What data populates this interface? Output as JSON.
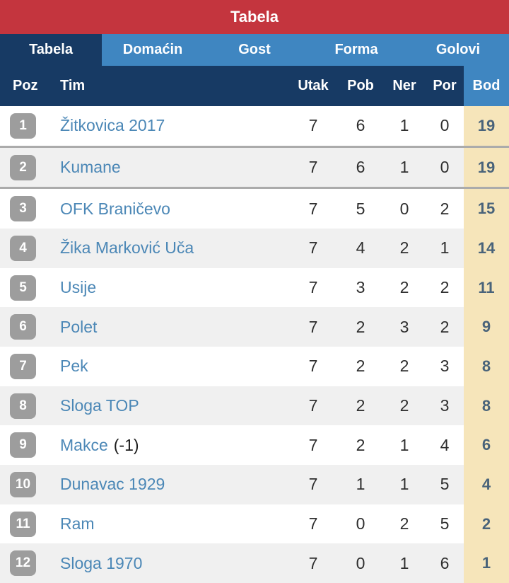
{
  "app_header": {
    "title": "Tabela"
  },
  "tabs": [
    {
      "id": "tabela",
      "label": "Tabela",
      "active": true
    },
    {
      "id": "domacin",
      "label": "Domaćin",
      "active": false
    },
    {
      "id": "gost",
      "label": "Gost",
      "active": false
    },
    {
      "id": "forma",
      "label": "Forma",
      "active": false
    },
    {
      "id": "golovi",
      "label": "Golovi",
      "active": false
    }
  ],
  "table": {
    "columns": {
      "poz": "Poz",
      "tim": "Tim",
      "utak": "Utak",
      "pob": "Pob",
      "ner": "Ner",
      "por": "Por",
      "bod": "Bod"
    },
    "rows": [
      {
        "poz": "1",
        "team": "Žitkovica 2017",
        "note": "",
        "utak": "7",
        "pob": "6",
        "ner": "1",
        "por": "0",
        "bod": "19",
        "shaded": false,
        "divider": true
      },
      {
        "poz": "2",
        "team": "Kumane",
        "note": "",
        "utak": "7",
        "pob": "6",
        "ner": "1",
        "por": "0",
        "bod": "19",
        "shaded": true,
        "divider": true
      },
      {
        "poz": "3",
        "team": "OFK Braničevo",
        "note": "",
        "utak": "7",
        "pob": "5",
        "ner": "0",
        "por": "2",
        "bod": "15",
        "shaded": false,
        "divider": false
      },
      {
        "poz": "4",
        "team": "Žika Marković Uča",
        "note": "",
        "utak": "7",
        "pob": "4",
        "ner": "2",
        "por": "1",
        "bod": "14",
        "shaded": true,
        "divider": false
      },
      {
        "poz": "5",
        "team": "Usije",
        "note": "",
        "utak": "7",
        "pob": "3",
        "ner": "2",
        "por": "2",
        "bod": "11",
        "shaded": false,
        "divider": false
      },
      {
        "poz": "6",
        "team": "Polet",
        "note": "",
        "utak": "7",
        "pob": "2",
        "ner": "3",
        "por": "2",
        "bod": "9",
        "shaded": true,
        "divider": false
      },
      {
        "poz": "7",
        "team": "Pek",
        "note": "",
        "utak": "7",
        "pob": "2",
        "ner": "2",
        "por": "3",
        "bod": "8",
        "shaded": false,
        "divider": false
      },
      {
        "poz": "8",
        "team": "Sloga TOP",
        "note": "",
        "utak": "7",
        "pob": "2",
        "ner": "2",
        "por": "3",
        "bod": "8",
        "shaded": true,
        "divider": false
      },
      {
        "poz": "9",
        "team": "Makce",
        "note": "(-1)",
        "utak": "7",
        "pob": "2",
        "ner": "1",
        "por": "4",
        "bod": "6",
        "shaded": false,
        "divider": false
      },
      {
        "poz": "10",
        "team": "Dunavac 1929",
        "note": "",
        "utak": "7",
        "pob": "1",
        "ner": "1",
        "por": "5",
        "bod": "4",
        "shaded": true,
        "divider": false
      },
      {
        "poz": "11",
        "team": "Ram",
        "note": "",
        "utak": "7",
        "pob": "0",
        "ner": "2",
        "por": "5",
        "bod": "2",
        "shaded": false,
        "divider": false
      },
      {
        "poz": "12",
        "team": "Sloga 1970",
        "note": "",
        "utak": "7",
        "pob": "0",
        "ner": "1",
        "por": "6",
        "bod": "1",
        "shaded": true,
        "divider": false
      }
    ]
  },
  "colors": {
    "header-red": "#c4353e",
    "navy": "#173a64",
    "light-blue": "#3f86c1",
    "cream": "#f6e5ba",
    "badge-gray": "#9d9d9d",
    "row-shaded": "#f0f0f0",
    "divider-gray": "#ababab",
    "team-link-blue": "#4b87b6",
    "points-text": "#49637a",
    "stat-text": "#2e2e2e"
  }
}
